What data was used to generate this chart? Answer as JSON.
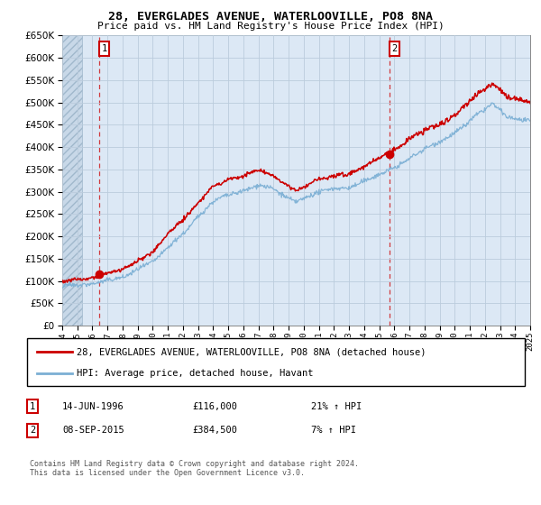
{
  "title1": "28, EVERGLADES AVENUE, WATERLOOVILLE, PO8 8NA",
  "title2": "Price paid vs. HM Land Registry's House Price Index (HPI)",
  "ytick_vals": [
    0,
    50000,
    100000,
    150000,
    200000,
    250000,
    300000,
    350000,
    400000,
    450000,
    500000,
    550000,
    600000,
    650000
  ],
  "hpi_color": "#7bafd4",
  "price_color": "#cc0000",
  "marker_color": "#cc0000",
  "sale1_year": 1996.45,
  "sale1_price": 116000,
  "sale1_label": "1",
  "sale2_year": 2015.68,
  "sale2_price": 384500,
  "sale2_label": "2",
  "legend_line1": "28, EVERGLADES AVENUE, WATERLOOVILLE, PO8 8NA (detached house)",
  "legend_line2": "HPI: Average price, detached house, Havant",
  "ann1_num": "1",
  "ann1_date": "14-JUN-1996",
  "ann1_price": "£116,000",
  "ann1_hpi": "21% ↑ HPI",
  "ann2_num": "2",
  "ann2_date": "08-SEP-2015",
  "ann2_price": "£384,500",
  "ann2_hpi": "7% ↑ HPI",
  "footer": "Contains HM Land Registry data © Crown copyright and database right 2024.\nThis data is licensed under the Open Government Licence v3.0.",
  "xmin": 1994,
  "xmax": 2025,
  "ymin": 0,
  "ymax": 650000,
  "grid_color": "#bbccdd",
  "bg_color": "#dce8f5",
  "hatch_color": "#c8d8e8"
}
